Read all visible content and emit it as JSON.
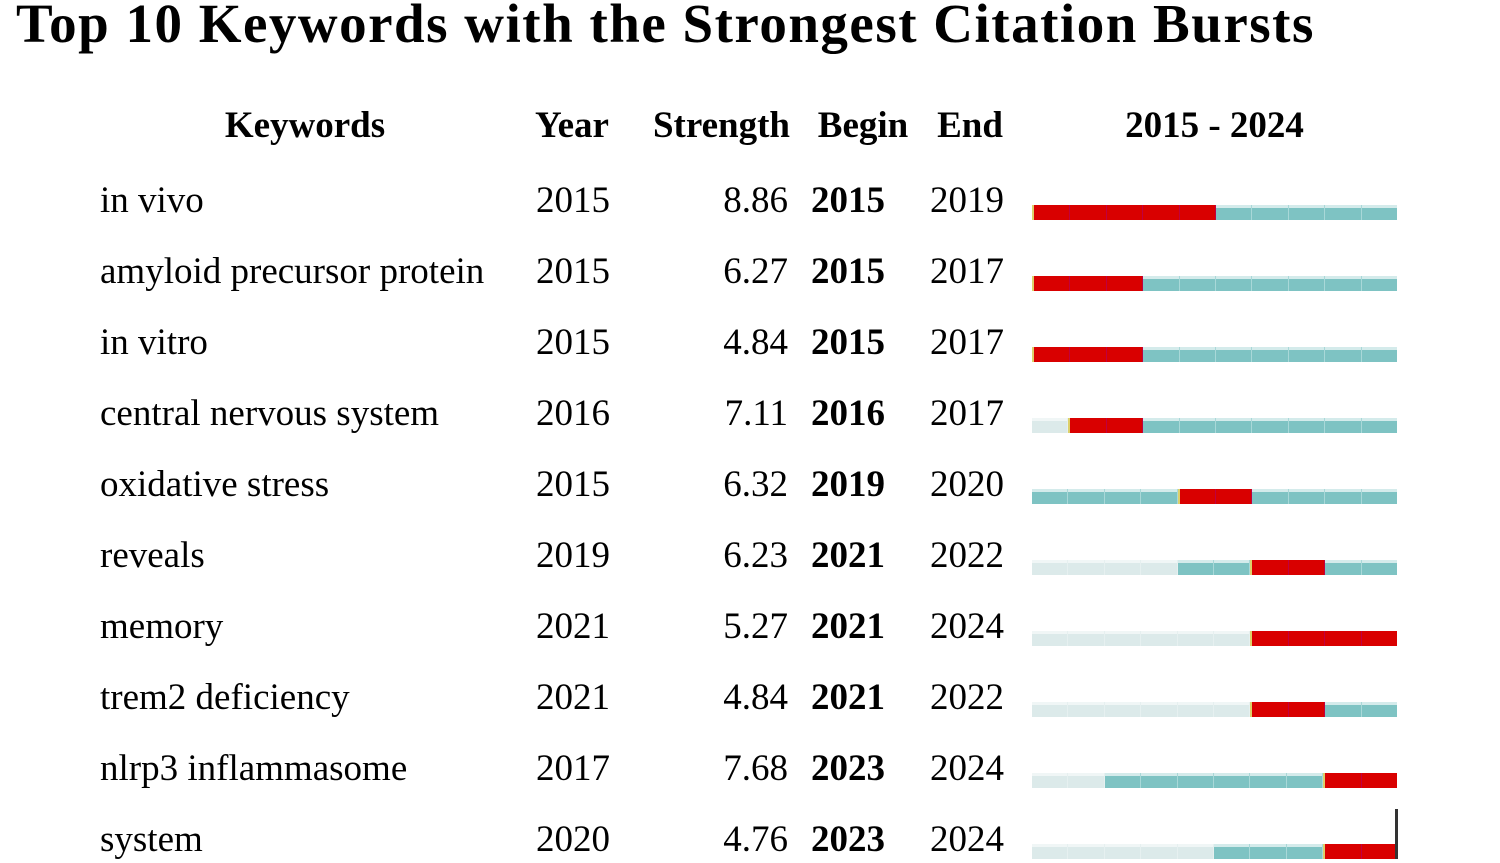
{
  "title": "Top 10 Keywords with the Strongest Citation Bursts",
  "chart_data": {
    "type": "table",
    "title": "Top 10 Keywords with the Strongest Citation Bursts",
    "columns": [
      "Keywords",
      "Year",
      "Strength",
      "Begin",
      "End",
      "2015 - 2024"
    ],
    "timeline_start": 2015,
    "timeline_end": 2024,
    "rows": [
      {
        "keyword": "in vivo",
        "year": "2015",
        "strength": "8.86",
        "begin": "2015",
        "end": "2019"
      },
      {
        "keyword": "amyloid precursor protein",
        "year": "2015",
        "strength": "6.27",
        "begin": "2015",
        "end": "2017"
      },
      {
        "keyword": "in vitro",
        "year": "2015",
        "strength": "4.84",
        "begin": "2015",
        "end": "2017"
      },
      {
        "keyword": "central nervous system",
        "year": "2016",
        "strength": "7.11",
        "begin": "2016",
        "end": "2017"
      },
      {
        "keyword": "oxidative stress",
        "year": "2015",
        "strength": "6.32",
        "begin": "2019",
        "end": "2020"
      },
      {
        "keyword": "reveals",
        "year": "2019",
        "strength": "6.23",
        "begin": "2021",
        "end": "2022"
      },
      {
        "keyword": "memory",
        "year": "2021",
        "strength": "5.27",
        "begin": "2021",
        "end": "2024"
      },
      {
        "keyword": "trem2 deficiency",
        "year": "2021",
        "strength": "4.84",
        "begin": "2021",
        "end": "2022"
      },
      {
        "keyword": "nlrp3 inflammasome",
        "year": "2017",
        "strength": "7.68",
        "begin": "2023",
        "end": "2024"
      },
      {
        "keyword": "system",
        "year": "2020",
        "strength": "4.76",
        "begin": "2023",
        "end": "2024"
      }
    ],
    "colors": {
      "burst": "#d90000",
      "active": "#7ec3c3",
      "inactive": "#dceaea"
    }
  }
}
